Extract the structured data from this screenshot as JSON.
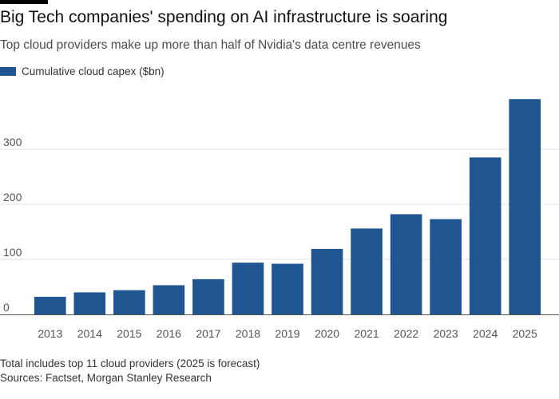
{
  "header": {
    "title": "Big Tech companies' spending on AI infrastructure is soaring",
    "subtitle": "Top cloud providers make up more than half of Nvidia's data centre revenues"
  },
  "footer": {
    "note": "Total includes top 11 cloud providers (2025 is forecast)",
    "source": "Sources: Factset, Morgan Stanley Research"
  },
  "colors": {
    "bar": "#1f5590",
    "grid": "#e2e2e2",
    "axis": "#555555",
    "tick_text": "#555555"
  },
  "chart_data": {
    "type": "bar",
    "title": "Big Tech companies' spending on AI infrastructure is soaring",
    "subtitle": "Top cloud providers make up more than half of Nvidia's data centre revenues",
    "xlabel": "",
    "ylabel": "",
    "categories": [
      "2013",
      "2014",
      "2015",
      "2016",
      "2017",
      "2018",
      "2019",
      "2020",
      "2021",
      "2022",
      "2023",
      "2024",
      "2025"
    ],
    "series": [
      {
        "name": "Cumulative cloud capex ($bn)",
        "values": [
          32,
          40,
          44,
          53,
          64,
          94,
          92,
          119,
          156,
          182,
          173,
          285,
          391
        ]
      }
    ],
    "ylim": [
      0,
      400
    ],
    "yticks": [
      0,
      100,
      200,
      300
    ],
    "grid": true,
    "legend": "top-left"
  }
}
